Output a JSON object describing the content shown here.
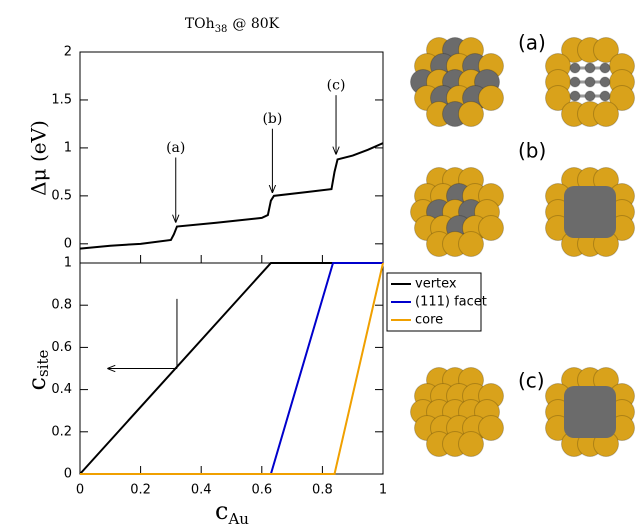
{
  "chart_data": [
    {
      "type": "line",
      "title_main": "TOh",
      "title_sub": "38",
      "title_rest": "@ 80K",
      "ylabel": "Δμ  (eV)",
      "x": [
        0,
        0.1,
        0.2,
        0.3,
        0.31,
        0.32,
        0.45,
        0.6,
        0.62,
        0.63,
        0.64,
        0.75,
        0.83,
        0.84,
        0.85,
        0.9,
        0.95,
        1
      ],
      "values": [
        -0.05,
        -0.02,
        0,
        0.04,
        0.1,
        0.18,
        0.22,
        0.27,
        0.3,
        0.45,
        0.5,
        0.54,
        0.57,
        0.75,
        0.88,
        0.92,
        0.98,
        1.05
      ],
      "color": "#000000",
      "annotations": [
        "(a)",
        "(b)",
        "(c)"
      ],
      "xlim": [
        0,
        1
      ],
      "ylim": [
        -0.2,
        2
      ],
      "yticks": [
        0,
        0.5,
        1,
        1.5,
        2
      ]
    },
    {
      "type": "line",
      "xlabel_main": "c",
      "xlabel_sub": "Au",
      "ylabel_main": "c",
      "ylabel_sub": "site",
      "x": [
        0,
        0.63,
        0.835,
        0.84,
        1
      ],
      "series": [
        {
          "name": "vertex",
          "color": "#000000",
          "values": [
            0,
            1,
            1,
            1,
            1
          ]
        },
        {
          "name": "(111) facet",
          "color": "#0000cc",
          "values": [
            0,
            0,
            1,
            1,
            1
          ]
        },
        {
          "name": "core",
          "color": "#f0a000",
          "values": [
            0,
            0,
            0,
            0,
            1
          ]
        }
      ],
      "xlim": [
        0,
        1
      ],
      "ylim": [
        0,
        1
      ],
      "xticks": [
        0,
        0.2,
        0.4,
        0.6,
        0.8,
        1
      ],
      "yticks": [
        0,
        0.2,
        0.4,
        0.6,
        0.8,
        1
      ],
      "legend": "upper right"
    }
  ],
  "panel_labels": [
    "(a)",
    "(b)",
    "(c)"
  ]
}
